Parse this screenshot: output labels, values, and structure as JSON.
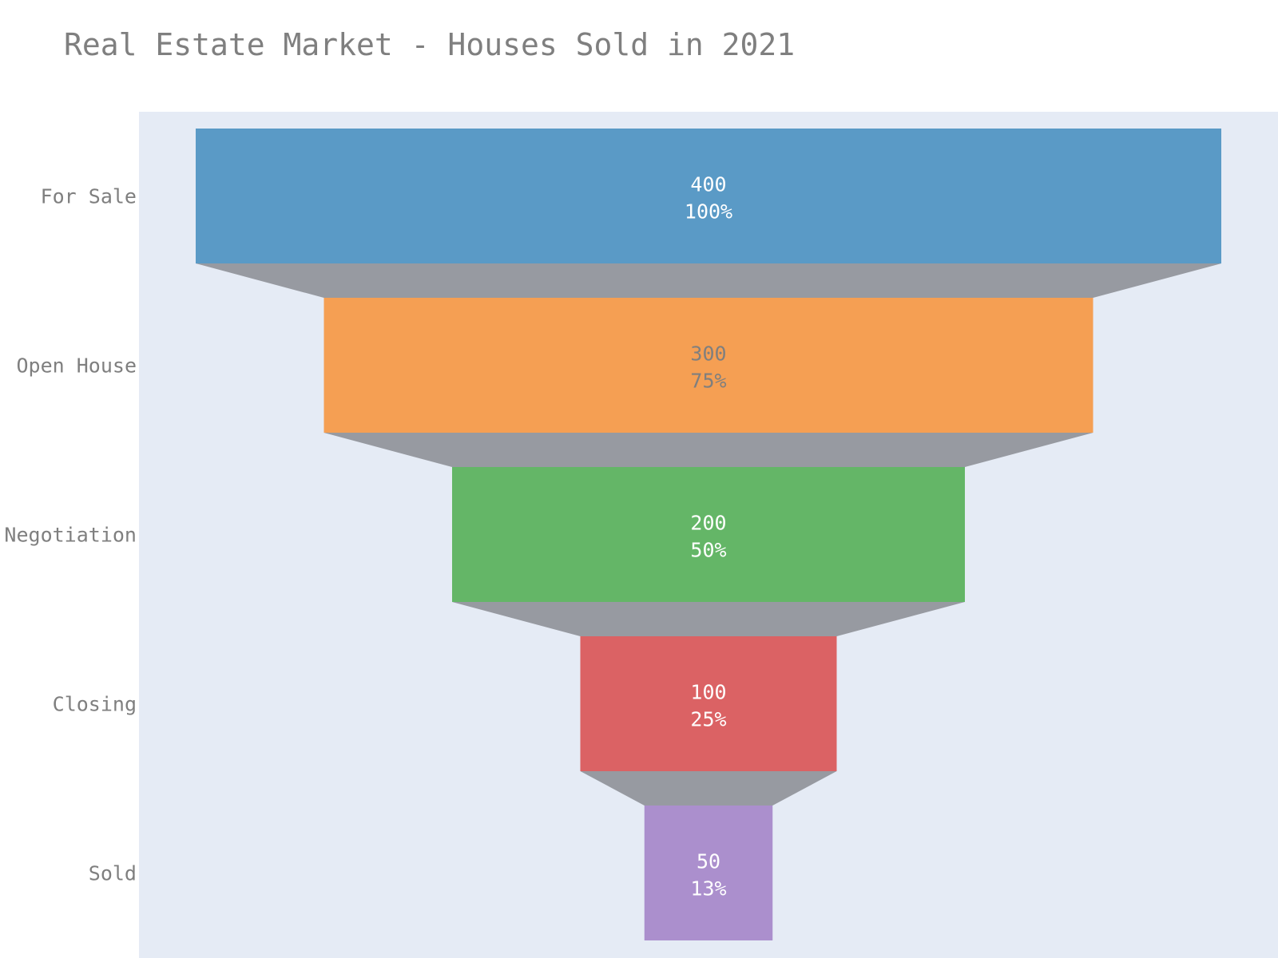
{
  "chart_data": {
    "type": "funnel",
    "title": "Real Estate Market - Houses Sold in 2021",
    "categories": [
      "For Sale",
      "Open House",
      "Negotiation",
      "Closing",
      "Sold"
    ],
    "values": [
      400,
      300,
      200,
      100,
      50
    ],
    "percent_labels": [
      "100%",
      "75%",
      "50%",
      "25%",
      "13%"
    ],
    "colors": [
      "#5a9ac6",
      "#f59f53",
      "#64b667",
      "#db6264",
      "#ab8fcd"
    ],
    "text_colors": [
      "#ffffff",
      "#7f7f7f",
      "#ffffff",
      "#ffffff",
      "#ffffff"
    ],
    "connector_color": "#979aa1",
    "plot_background": "#e5ebf5"
  }
}
